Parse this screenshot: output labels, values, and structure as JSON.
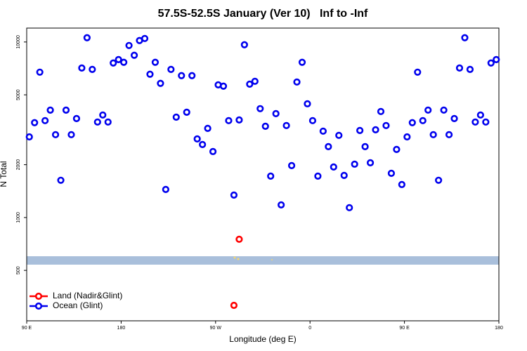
{
  "chart_data": {
    "type": "scatter",
    "title": "57.5S-52.5S January (Ver 10)   Inf to -Inf",
    "x_label": "Longitude (deg E)",
    "y_label": "N Total",
    "xlim": [
      90,
      540
    ],
    "xticks": [
      {
        "value": 90,
        "label": "90 E"
      },
      180,
      {
        "value": 270,
        "label": "90 W"
      },
      {
        "value": 360,
        "label": "0"
      },
      {
        "value": 450,
        "label": "90 E"
      },
      {
        "value": 540,
        "label": "180"
      }
    ],
    "ylim": [
      258,
      12000
    ],
    "yticks": [
      500,
      1000,
      2000,
      5000,
      10000
    ],
    "log_y": true,
    "legend": "bottom-left",
    "series": [
      {
        "name": "Land (Nadir&Glint)",
        "color": "#ff0000",
        "x": [
          292.5,
          287.5
        ],
        "values": [
          752,
          316
        ]
      },
      {
        "name": "Ocean (Glint)",
        "color": "#0000ee",
        "x": [
          92.5,
          97.5,
          102.5,
          107.5,
          112.5,
          117.5,
          122.5,
          127.5,
          132.5,
          137.5,
          142.5,
          147.5,
          152.5,
          157.5,
          162.5,
          167.5,
          172.5,
          177.5,
          182.5,
          187.5,
          192.5,
          197.5,
          202.5,
          207.5,
          212.5,
          217.5,
          222.5,
          227.5,
          232.5,
          237.5,
          242.5,
          247.5,
          252.5,
          257.5,
          262.5,
          267.5,
          272.5,
          277.5,
          282.5,
          287.5,
          292.5,
          297.5,
          302.5,
          307.5,
          312.5,
          317.5,
          322.5,
          327.5,
          332.5,
          337.5,
          342.5,
          347.5,
          352.5,
          357.5,
          362.5,
          367.5,
          372.5,
          377.5,
          382.5,
          387.5,
          392.5,
          397.5,
          402.5,
          407.5,
          412.5,
          417.5,
          422.5,
          427.5,
          432.5,
          437.5,
          442.5,
          447.5,
          452.5,
          457.5,
          462.5,
          467.5,
          472.5,
          477.5,
          482.5,
          487.5,
          492.5,
          497.5,
          502.5,
          507.5,
          512.5,
          517.5,
          522.5,
          527.5,
          532.5,
          537.5
        ],
        "values": [
          2880,
          3470,
          6730,
          3565,
          4090,
          2965,
          1630,
          4090,
          2965,
          3664,
          7110,
          10570,
          6980,
          3500,
          3837,
          3500,
          7590,
          7940,
          7660,
          9550,
          8400,
          10190,
          10470,
          6550,
          7660,
          5810,
          1445,
          6980,
          3730,
          6430,
          3980,
          6430,
          2805,
          2606,
          3220,
          2377,
          5700,
          5600,
          3565,
          1343,
          3597,
          9640,
          5750,
          5970,
          4170,
          3311,
          1722,
          3908,
          1180,
          3342,
          1977,
          5915,
          7660,
          4446,
          3565,
          1722,
          3105,
          2535,
          1941,
          2938,
          1738,
          1138,
          2014,
          3133,
          2535,
          2051,
          3162,
          4018,
          3342,
          1786,
          2443,
          1542,
          2880,
          3470,
          6730,
          3565,
          4093,
          2965,
          1630,
          4093,
          2965,
          3664,
          7110,
          10570,
          6980,
          3500,
          3837,
          3500,
          7590,
          7940
        ]
      }
    ]
  }
}
